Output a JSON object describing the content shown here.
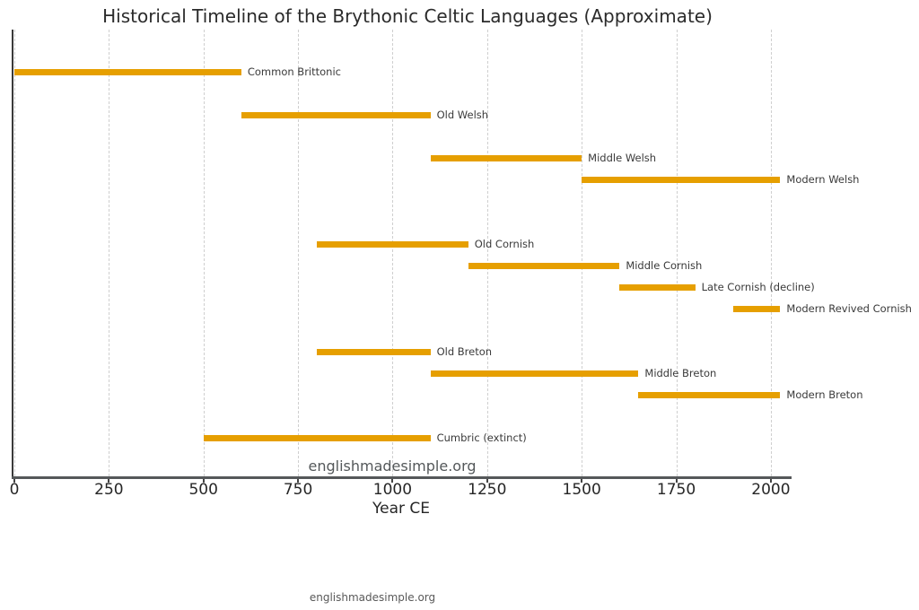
{
  "page": {
    "watermark_plot": "englishmadesimple.org",
    "watermark_footer": "englishmadesimple.org"
  },
  "colors": {
    "bar": "#E69F00",
    "title_text": "#2b2b2b",
    "tick_text": "#262626",
    "bar_label_text": "#3a3a3a",
    "gridline": "#cfcfcf",
    "axis_line": "#55585a",
    "left_spine": "#3a3a3a",
    "watermark": "#54585a"
  },
  "chart_data": {
    "type": "bar",
    "orientation": "horizontal",
    "title": "Historical Timeline of the Brythonic Celtic Languages (Approximate)",
    "xlabel": "Year CE",
    "xlim": [
      0,
      2060
    ],
    "x_ticks": [
      0,
      250,
      500,
      750,
      1000,
      1250,
      1500,
      1750,
      2000
    ],
    "grid": "vertical dashed gridlines at each x tick",
    "legend": "none",
    "bar_color": "#E69F00",
    "series": [
      {
        "name": "Common Brittonic",
        "start": 0,
        "end": 600,
        "track": 0
      },
      {
        "name": "Old Welsh",
        "start": 600,
        "end": 1100,
        "track": 2
      },
      {
        "name": "Middle Welsh",
        "start": 1100,
        "end": 1500,
        "track": 4
      },
      {
        "name": "Modern Welsh",
        "start": 1500,
        "end": 2025,
        "track": 5
      },
      {
        "name": "Old Cornish",
        "start": 800,
        "end": 1200,
        "track": 8
      },
      {
        "name": "Middle Cornish",
        "start": 1200,
        "end": 1600,
        "track": 9
      },
      {
        "name": "Late Cornish (decline)",
        "start": 1600,
        "end": 1800,
        "track": 10
      },
      {
        "name": "Modern Revived Cornish",
        "start": 1900,
        "end": 2025,
        "track": 11
      },
      {
        "name": "Old Breton",
        "start": 800,
        "end": 1100,
        "track": 13
      },
      {
        "name": "Middle Breton",
        "start": 1100,
        "end": 1650,
        "track": 14
      },
      {
        "name": "Modern Breton",
        "start": 1650,
        "end": 2025,
        "track": 15
      },
      {
        "name": "Cumbric (extinct)",
        "start": 500,
        "end": 1100,
        "track": 17
      }
    ],
    "annotations": [
      "englishmadesimple.org watermark inside plot",
      "englishmadesimple.org watermark below chart"
    ]
  }
}
